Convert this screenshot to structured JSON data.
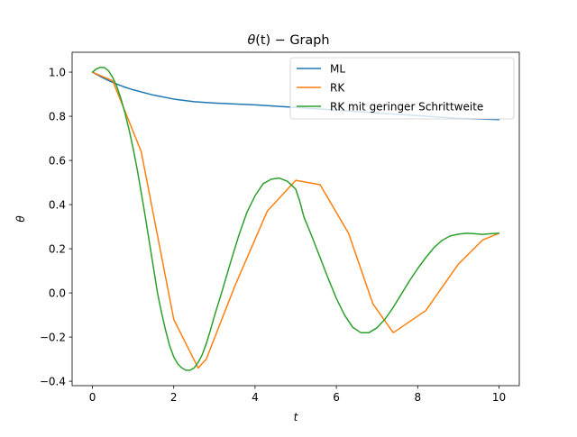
{
  "chart_data": {
    "type": "line",
    "title": "θ(t) − Graph",
    "title_italic": "θ",
    "title_rest": "(t) − Graph",
    "xlabel": "t",
    "ylabel": "θ",
    "xlim": [
      -0.5,
      10.5
    ],
    "ylim": [
      -0.42,
      1.09
    ],
    "xticks": [
      0,
      2,
      4,
      6,
      8,
      10
    ],
    "xtick_labels": [
      "0",
      "2",
      "4",
      "6",
      "8",
      "10"
    ],
    "yticks": [
      -0.4,
      -0.2,
      0.0,
      0.2,
      0.4,
      0.6,
      0.8,
      1.0
    ],
    "ytick_labels": [
      "−0.4",
      "−0.2",
      "0.0",
      "0.2",
      "0.4",
      "0.6",
      "0.8",
      "1.0"
    ],
    "grid": false,
    "legend_position": "top-right",
    "series": [
      {
        "name": "ML",
        "color": "#1f77b4",
        "x": [
          0,
          0.25,
          0.5,
          0.75,
          1.0,
          1.5,
          2.0,
          2.5,
          3.0,
          4.0,
          5.0,
          6.0,
          7.0,
          8.0,
          9.0,
          10.0
        ],
        "y": [
          1.0,
          0.975,
          0.953,
          0.935,
          0.92,
          0.896,
          0.878,
          0.866,
          0.86,
          0.852,
          0.84,
          0.828,
          0.815,
          0.803,
          0.791,
          0.785
        ]
      },
      {
        "name": "RK",
        "color": "#ff7f0e",
        "x": [
          0,
          0.5,
          1.2,
          2.0,
          2.6,
          2.8,
          3.5,
          4.3,
          5.0,
          5.6,
          6.3,
          6.9,
          7.4,
          8.2,
          9.0,
          9.6,
          10.0
        ],
        "y": [
          1.0,
          0.96,
          0.64,
          -0.12,
          -0.34,
          -0.3,
          0.03,
          0.37,
          0.51,
          0.49,
          0.27,
          -0.05,
          -0.18,
          -0.08,
          0.13,
          0.24,
          0.27
        ]
      },
      {
        "name": "RK mit geringer Schrittweite",
        "color": "#2ca02c",
        "x": [
          0,
          0.1,
          0.2,
          0.3,
          0.4,
          0.5,
          0.6,
          0.7,
          0.8,
          0.9,
          1.0,
          1.1,
          1.2,
          1.3,
          1.4,
          1.5,
          1.6,
          1.7,
          1.8,
          1.9,
          2.0,
          2.1,
          2.2,
          2.3,
          2.4,
          2.5,
          2.6,
          2.7,
          2.8,
          2.9,
          3.0,
          3.2,
          3.4,
          3.6,
          3.8,
          4.0,
          4.2,
          4.4,
          4.6,
          4.8,
          5.0,
          5.1,
          5.2,
          5.4,
          5.6,
          5.8,
          6.0,
          6.2,
          6.4,
          6.6,
          6.8,
          7.0,
          7.2,
          7.4,
          7.6,
          7.8,
          8.0,
          8.2,
          8.4,
          8.6,
          8.8,
          9.0,
          9.2,
          9.4,
          9.6,
          9.8,
          10.0
        ],
        "y": [
          1.0,
          1.015,
          1.022,
          1.02,
          1.005,
          0.975,
          0.935,
          0.88,
          0.815,
          0.74,
          0.655,
          0.56,
          0.455,
          0.345,
          0.23,
          0.115,
          0.0,
          -0.09,
          -0.17,
          -0.24,
          -0.29,
          -0.322,
          -0.34,
          -0.35,
          -0.35,
          -0.34,
          -0.315,
          -0.28,
          -0.23,
          -0.17,
          -0.105,
          0.015,
          0.14,
          0.26,
          0.365,
          0.44,
          0.495,
          0.515,
          0.52,
          0.505,
          0.47,
          0.415,
          0.345,
          0.255,
          0.16,
          0.065,
          -0.025,
          -0.1,
          -0.155,
          -0.18,
          -0.18,
          -0.158,
          -0.118,
          -0.065,
          -0.005,
          0.055,
          0.11,
          0.16,
          0.205,
          0.238,
          0.258,
          0.266,
          0.27,
          0.268,
          0.265,
          0.268,
          0.27
        ]
      }
    ]
  }
}
